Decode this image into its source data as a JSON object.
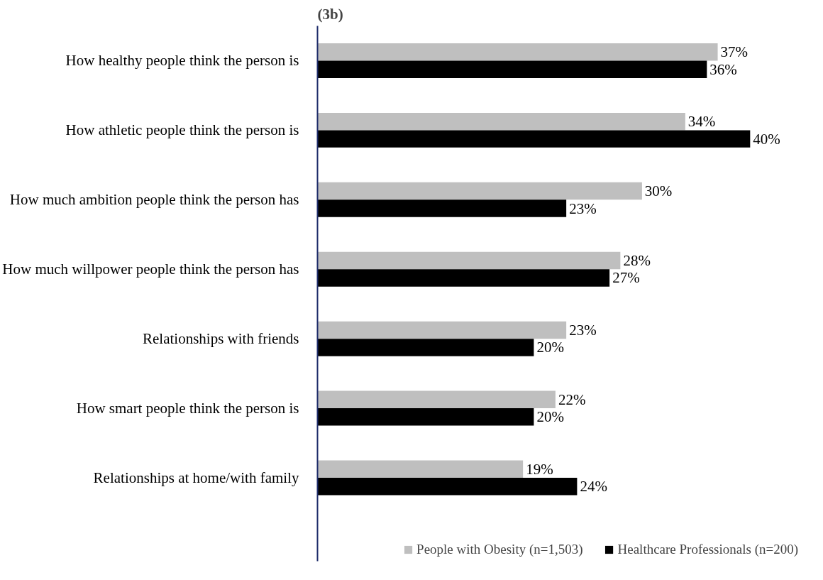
{
  "chart_data": {
    "type": "bar",
    "orientation": "horizontal",
    "title": "(3b)",
    "categories": [
      "How healthy people think the person is",
      "How athletic people think the person is",
      "How much ambition people think the person has",
      "How much willpower people think the person has",
      "Relationships with friends",
      "How smart people think the person is",
      "Relationships at home/with family"
    ],
    "series": [
      {
        "name": "People with Obesity (n=1,503)",
        "color": "#bfbfbf",
        "values": [
          37,
          34,
          30,
          28,
          23,
          22,
          19
        ],
        "value_labels": [
          "37%",
          "34%",
          "30%",
          "28%",
          "23%",
          "22%",
          "19%"
        ]
      },
      {
        "name": "Healthcare Professionals (n=200)",
        "color": "#000000",
        "values": [
          36,
          40,
          23,
          27,
          20,
          20,
          24
        ],
        "value_labels": [
          "36%",
          "40%",
          "23%",
          "27%",
          "20%",
          "20%",
          "24%"
        ]
      }
    ],
    "legend": "bottom",
    "grid": false,
    "tick_labels": "y"
  }
}
